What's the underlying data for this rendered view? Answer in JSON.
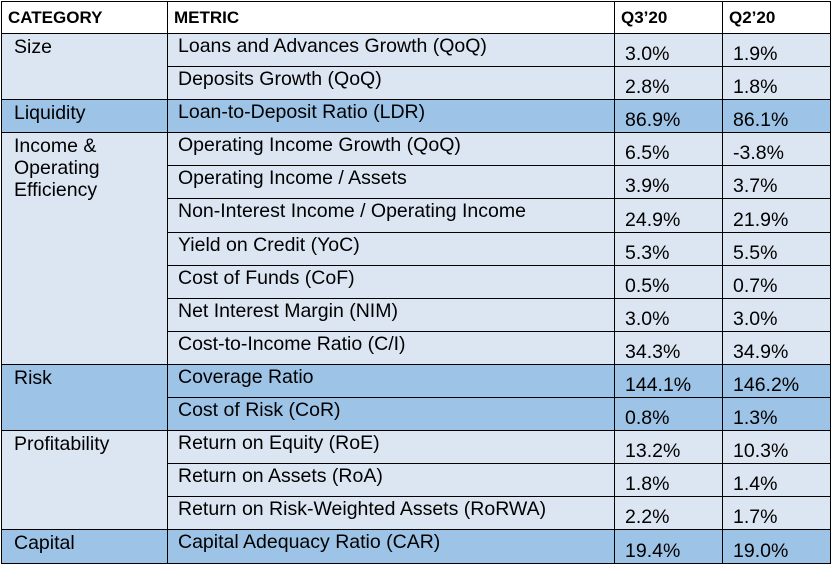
{
  "table": {
    "header": [
      "CATEGORY",
      "METRIC",
      "Q3’20",
      "Q2’20"
    ],
    "groups": [
      {
        "category": "Size",
        "rows": [
          [
            "Loans and Advances Growth (QoQ)",
            "3.0%",
            "1.9%"
          ],
          [
            "Deposits Growth (QoQ)",
            "2.8%",
            "1.8%"
          ]
        ]
      },
      {
        "category": "Liquidity",
        "rows": [
          [
            "Loan-to-Deposit Ratio (LDR)",
            "86.9%",
            "86.1%"
          ]
        ]
      },
      {
        "category": "Income & Operating Efficiency",
        "rows": [
          [
            "Operating Income Growth (QoQ)",
            "6.5%",
            "-3.8%"
          ],
          [
            "Operating Income / Assets",
            "3.9%",
            "3.7%"
          ],
          [
            "Non-Interest Income / Operating Income",
            "24.9%",
            "21.9%"
          ],
          [
            "Yield on Credit (YoC)",
            "5.3%",
            "5.5%"
          ],
          [
            "Cost of Funds (CoF)",
            "0.5%",
            "0.7%"
          ],
          [
            "Net Interest Margin (NIM)",
            "3.0%",
            "3.0%"
          ],
          [
            "Cost-to-Income Ratio (C/I)",
            "34.3%",
            "34.9%"
          ]
        ]
      },
      {
        "category": "Risk",
        "rows": [
          [
            "Coverage Ratio",
            "144.1%",
            "146.2%"
          ],
          [
            "Cost of Risk (CoR)",
            "0.8%",
            "1.3%"
          ]
        ]
      },
      {
        "category": "Profitability",
        "rows": [
          [
            "Return on Equity (RoE)",
            "13.2%",
            "10.3%"
          ],
          [
            "Return on Assets (RoA)",
            "1.8%",
            "1.4%"
          ],
          [
            "Return on Risk-Weighted Assets (RoRWA)",
            "2.2%",
            "1.7%"
          ]
        ]
      },
      {
        "category": "Capital",
        "rows": [
          [
            "Capital Adequacy Ratio (CAR)",
            "19.4%",
            "19.0%"
          ]
        ]
      }
    ]
  }
}
